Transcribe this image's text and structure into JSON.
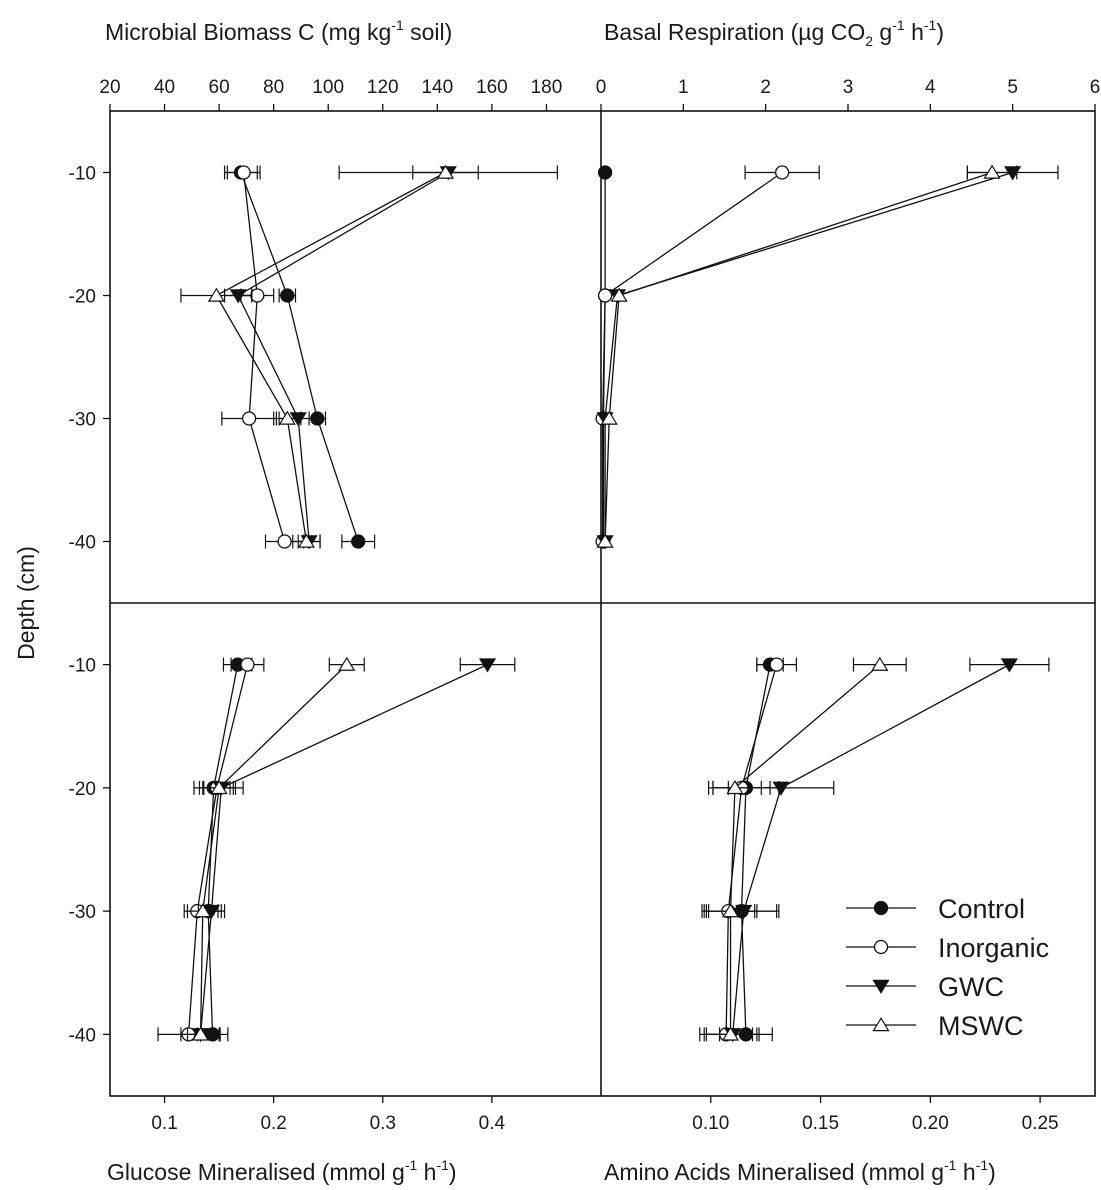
{
  "chart_data": [
    {
      "panel": "top-left",
      "type": "line",
      "title": "",
      "xlabel": "Microbial Biomass C (mg kg-1 soil)",
      "xlabel_main": "Microbial Biomass C (mg kg",
      "xlabel_sup": "-1",
      "xlabel_tail": " soil)",
      "ylabel": "Depth (cm)",
      "xlim": [
        20,
        200
      ],
      "xticks": [
        20,
        40,
        60,
        80,
        100,
        120,
        140,
        160,
        180
      ],
      "ylim": [
        -45,
        -5
      ],
      "yticks": [
        -10,
        -20,
        -30,
        -40
      ],
      "y": [
        -10,
        -20,
        -30,
        -40
      ],
      "series": [
        {
          "name": "Control",
          "values": [
            68,
            85,
            96,
            111
          ],
          "errors": [
            6,
            3,
            3,
            6
          ]
        },
        {
          "name": "Inorganic",
          "values": [
            69,
            74,
            71,
            84
          ],
          "errors": [
            6,
            6,
            10,
            7
          ]
        },
        {
          "name": "GWC",
          "values": [
            144,
            67,
            89,
            93
          ],
          "errors": [
            40,
            5,
            7,
            4
          ]
        },
        {
          "name": "MSWC",
          "values": [
            143,
            59,
            85,
            92
          ],
          "errors": [
            12,
            13,
            5,
            5
          ]
        }
      ]
    },
    {
      "panel": "top-right",
      "type": "line",
      "title": "",
      "xlabel": "Basal Respiration (µg CO2 g-1 h-1)",
      "xlim": [
        0,
        6
      ],
      "xticks": [
        0,
        1,
        2,
        3,
        4,
        5,
        6
      ],
      "ylim": [
        -45,
        -5
      ],
      "y": [
        -10,
        -20,
        -30,
        -40
      ],
      "series": [
        {
          "name": "Control",
          "values": [
            0.05,
            0.05,
            0.03,
            0.03
          ],
          "errors": [
            0,
            0,
            0,
            0
          ]
        },
        {
          "name": "Inorganic",
          "values": [
            2.2,
            0.05,
            0.02,
            0.02
          ],
          "errors": [
            0.45,
            0,
            0,
            0
          ]
        },
        {
          "name": "GWC",
          "values": [
            5.0,
            0.2,
            0.05,
            0.05
          ],
          "errors": [
            0.55,
            0,
            0,
            0
          ]
        },
        {
          "name": "MSWC",
          "values": [
            4.75,
            0.22,
            0.1,
            0.05
          ],
          "errors": [
            0.3,
            0,
            0,
            0
          ]
        }
      ]
    },
    {
      "panel": "bottom-left",
      "type": "line",
      "title": "",
      "xlabel": "Glucose Mineralised (mmol g-1 h-1)",
      "xlim": [
        0.05,
        0.5
      ],
      "xticks": [
        0.1,
        0.2,
        0.3,
        0.4
      ],
      "xtick_labels": [
        "0.1",
        "0.2",
        "0.3",
        "0.4"
      ],
      "ylim": [
        -45,
        -5
      ],
      "yticks": [
        -10,
        -20,
        -30,
        -40
      ],
      "y": [
        -10,
        -20,
        -30,
        -40
      ],
      "series": [
        {
          "name": "Control",
          "values": [
            0.167,
            0.145,
            0.14,
            0.144
          ],
          "errors": [
            0.013,
            0.018,
            0.012,
            0.014
          ]
        },
        {
          "name": "Inorganic",
          "values": [
            0.176,
            0.148,
            0.13,
            0.122
          ],
          "errors": [
            0.015,
            0.012,
            0.012,
            0.028
          ]
        },
        {
          "name": "GWC",
          "values": [
            0.396,
            0.152,
            0.143,
            0.133
          ],
          "errors": [
            0.025,
            0.02,
            0.012,
            0.012
          ]
        },
        {
          "name": "MSWC",
          "values": [
            0.267,
            0.15,
            0.135,
            0.133
          ],
          "errors": [
            0.016,
            0.015,
            0.014,
            0.018
          ]
        }
      ]
    },
    {
      "panel": "bottom-right",
      "type": "line",
      "title": "",
      "xlabel": "Amino Acids Mineralised (mmol g-1 h-1)",
      "xlim": [
        0.05,
        0.275
      ],
      "xticks": [
        0.1,
        0.15,
        0.2,
        0.25
      ],
      "xtick_labels": [
        "0.10",
        "0.15",
        "0.20",
        "0.25"
      ],
      "ylim": [
        -45,
        -5
      ],
      "y": [
        -10,
        -20,
        -30,
        -40
      ],
      "series": [
        {
          "name": "Control",
          "values": [
            0.127,
            0.116,
            0.114,
            0.116
          ],
          "errors": [
            0.006,
            0.015,
            0.016,
            0.012
          ]
        },
        {
          "name": "Inorganic",
          "values": [
            0.13,
            0.114,
            0.108,
            0.107
          ],
          "errors": [
            0.009,
            0.013,
            0.012,
            0.012
          ]
        },
        {
          "name": "GWC",
          "values": [
            0.236,
            0.132,
            0.115,
            0.11
          ],
          "errors": [
            0.018,
            0.024,
            0.016,
            0.012
          ]
        },
        {
          "name": "MSWC",
          "values": [
            0.177,
            0.111,
            0.109,
            0.109
          ],
          "errors": [
            0.012,
            0.012,
            0.012,
            0.012
          ]
        }
      ]
    }
  ],
  "titles": {
    "top_left": {
      "main": "Microbial Biomass C (mg kg",
      "sup": "-1",
      "tail": " soil)"
    },
    "top_right": {
      "p1": "Basal Respiration (µg CO",
      "sub": "2",
      "p2": " g",
      "sup1": "-1",
      "p3": " h",
      "sup2": "-1",
      "p4": ")"
    },
    "bottom_left": {
      "p1": "Glucose Mineralised (mmol g",
      "sup1": "-1",
      "p2": " h",
      "sup2": "-1",
      "p3": ")"
    },
    "bottom_right": {
      "p1": "Amino Acids Mineralised (mmol g",
      "sup1": "-1",
      "p2": " h",
      "sup2": "-1",
      "p3": ")"
    },
    "ylabel": "Depth (cm)"
  },
  "legend": {
    "placement": "bottom-right",
    "items": [
      {
        "label": "Control",
        "marker": "filled-circle"
      },
      {
        "label": "Inorganic",
        "marker": "open-circle"
      },
      {
        "label": "GWC",
        "marker": "filled-triangle-down"
      },
      {
        "label": "MSWC",
        "marker": "open-triangle-up"
      }
    ]
  }
}
